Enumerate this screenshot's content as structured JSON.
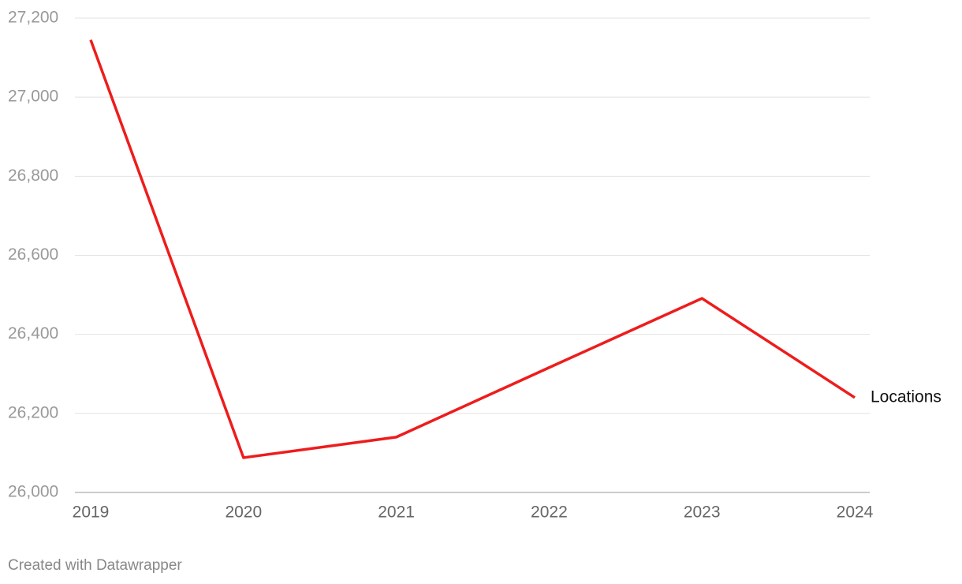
{
  "chart_data": {
    "type": "line",
    "categories": [
      "2019",
      "2020",
      "2021",
      "2022",
      "2023",
      "2024"
    ],
    "series": [
      {
        "name": "Locations",
        "color": "#ee1c1c",
        "values": [
          27145,
          26088,
          26140,
          26316,
          26491,
          26240
        ]
      }
    ],
    "ylim": [
      26000,
      27200
    ],
    "yticks": [
      {
        "value": 26000,
        "label": "26,000"
      },
      {
        "value": 26200,
        "label": "26,200"
      },
      {
        "value": 26400,
        "label": "26,400"
      },
      {
        "value": 26600,
        "label": "26,600"
      },
      {
        "value": 26800,
        "label": "26,800"
      },
      {
        "value": 27000,
        "label": "27,000"
      },
      {
        "value": 27200,
        "label": "27,200"
      }
    ],
    "grid": true,
    "footer": "Created with Datawrapper"
  }
}
